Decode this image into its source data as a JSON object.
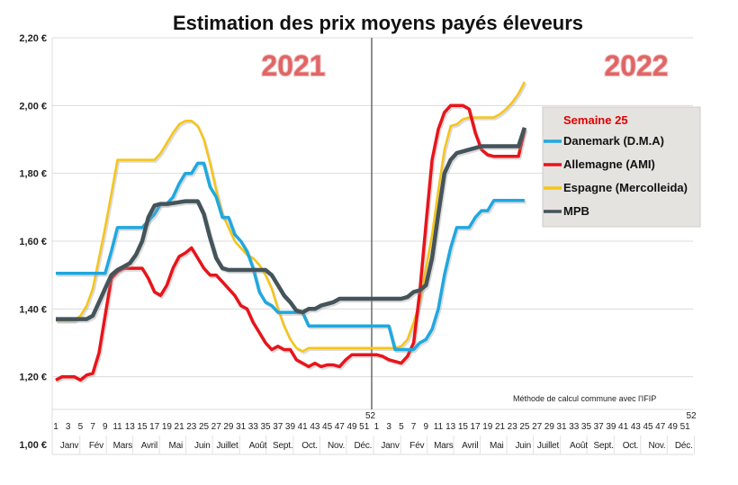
{
  "chart_data": {
    "type": "line",
    "title": "Estimation des prix moyens payés éleveurs",
    "xlabel": "",
    "ylabel": "",
    "ylim": [
      1.0,
      2.2
    ],
    "y_ticks": [
      "1,00 €",
      "1,20 €",
      "1,40 €",
      "1,60 €",
      "1,80 €",
      "2,00 €",
      "2,20 €"
    ],
    "y_tick_values": [
      1.0,
      1.2,
      1.4,
      1.6,
      1.8,
      2.0,
      2.2
    ],
    "years": [
      "2021",
      "2022"
    ],
    "week_tick_labels": [
      "1",
      "3",
      "5",
      "7",
      "9",
      "11",
      "13",
      "15",
      "17",
      "19",
      "21",
      "23",
      "25",
      "27",
      "29",
      "31",
      "33",
      "35",
      "37",
      "39",
      "41",
      "43",
      "45",
      "47",
      "49",
      "51",
      "52"
    ],
    "months": [
      "Janv",
      "Fév",
      "Mars",
      "Avril",
      "Mai",
      "Juin",
      "Juillet",
      "Août",
      "Sept.",
      "Oct.",
      "Nov.",
      "Déc."
    ],
    "grid": true,
    "legend_title": "Semaine 25",
    "legend_position": "right",
    "annotation": "Méthode de calcul commune avec l'IFIP",
    "x_note": "weeks 1-52 of 2021 followed by weeks 1-52 of 2022; data through week 25 of 2022",
    "series": [
      {
        "name": "Danemark (D.M.A)",
        "color": "#1fa8df",
        "values": [
          1.505,
          1.505,
          1.505,
          1.505,
          1.505,
          1.505,
          1.505,
          1.505,
          1.505,
          1.57,
          1.64,
          1.64,
          1.64,
          1.64,
          1.64,
          1.66,
          1.68,
          1.71,
          1.71,
          1.73,
          1.77,
          1.8,
          1.8,
          1.83,
          1.83,
          1.76,
          1.73,
          1.67,
          1.67,
          1.62,
          1.6,
          1.57,
          1.52,
          1.45,
          1.42,
          1.41,
          1.39,
          1.39,
          1.39,
          1.39,
          1.39,
          1.35,
          1.35,
          1.35,
          1.35,
          1.35,
          1.35,
          1.35,
          1.35,
          1.35,
          1.35,
          1.35,
          1.35,
          1.35,
          1.35,
          1.28,
          1.28,
          1.28,
          1.28,
          1.3,
          1.31,
          1.34,
          1.4,
          1.5,
          1.58,
          1.64,
          1.64,
          1.64,
          1.67,
          1.69,
          1.69,
          1.72,
          1.72,
          1.72,
          1.72,
          1.72,
          1.72
        ]
      },
      {
        "name": "Allemagne (AMI)",
        "color": "#e8141a",
        "values": [
          1.19,
          1.2,
          1.2,
          1.2,
          1.19,
          1.205,
          1.21,
          1.27,
          1.38,
          1.49,
          1.51,
          1.52,
          1.52,
          1.52,
          1.52,
          1.49,
          1.45,
          1.44,
          1.47,
          1.52,
          1.555,
          1.565,
          1.58,
          1.55,
          1.52,
          1.5,
          1.5,
          1.48,
          1.46,
          1.44,
          1.41,
          1.4,
          1.36,
          1.33,
          1.3,
          1.28,
          1.29,
          1.28,
          1.28,
          1.25,
          1.24,
          1.23,
          1.24,
          1.23,
          1.235,
          1.235,
          1.23,
          1.25,
          1.265,
          1.265,
          1.265,
          1.265,
          1.265,
          1.26,
          1.25,
          1.245,
          1.24,
          1.26,
          1.3,
          1.45,
          1.65,
          1.84,
          1.93,
          1.98,
          2.0,
          2.0,
          2.0,
          1.99,
          1.92,
          1.87,
          1.855,
          1.85,
          1.85,
          1.85,
          1.85,
          1.85,
          1.93
        ]
      },
      {
        "name": "Espagne (Mercolleida)",
        "color": "#f5c518",
        "values": [
          1.365,
          1.365,
          1.365,
          1.365,
          1.38,
          1.41,
          1.46,
          1.55,
          1.64,
          1.74,
          1.84,
          1.84,
          1.84,
          1.84,
          1.84,
          1.84,
          1.84,
          1.86,
          1.89,
          1.92,
          1.945,
          1.955,
          1.955,
          1.94,
          1.9,
          1.83,
          1.75,
          1.68,
          1.64,
          1.6,
          1.58,
          1.56,
          1.55,
          1.53,
          1.5,
          1.46,
          1.4,
          1.35,
          1.31,
          1.285,
          1.275,
          1.285,
          1.285,
          1.285,
          1.285,
          1.285,
          1.285,
          1.285,
          1.285,
          1.285,
          1.285,
          1.285,
          1.285,
          1.285,
          1.285,
          1.285,
          1.29,
          1.31,
          1.36,
          1.42,
          1.52,
          1.62,
          1.75,
          1.87,
          1.94,
          1.945,
          1.96,
          1.965,
          1.965,
          1.965,
          1.965,
          1.965,
          1.975,
          1.99,
          2.01,
          2.035,
          2.07
        ]
      },
      {
        "name": "MPB",
        "color": "#44545a",
        "values": [
          1.37,
          1.37,
          1.37,
          1.37,
          1.37,
          1.37,
          1.38,
          1.42,
          1.46,
          1.5,
          1.515,
          1.525,
          1.535,
          1.56,
          1.6,
          1.67,
          1.705,
          1.71,
          1.71,
          1.712,
          1.715,
          1.718,
          1.718,
          1.718,
          1.68,
          1.61,
          1.55,
          1.52,
          1.515,
          1.515,
          1.515,
          1.515,
          1.515,
          1.515,
          1.515,
          1.5,
          1.47,
          1.44,
          1.42,
          1.395,
          1.39,
          1.4,
          1.4,
          1.41,
          1.415,
          1.42,
          1.43,
          1.43,
          1.43,
          1.43,
          1.43,
          1.43,
          1.43,
          1.43,
          1.43,
          1.43,
          1.43,
          1.435,
          1.45,
          1.455,
          1.47,
          1.55,
          1.68,
          1.8,
          1.84,
          1.86,
          1.865,
          1.87,
          1.875,
          1.88,
          1.88,
          1.88,
          1.88,
          1.88,
          1.88,
          1.88,
          1.935
        ]
      }
    ]
  }
}
